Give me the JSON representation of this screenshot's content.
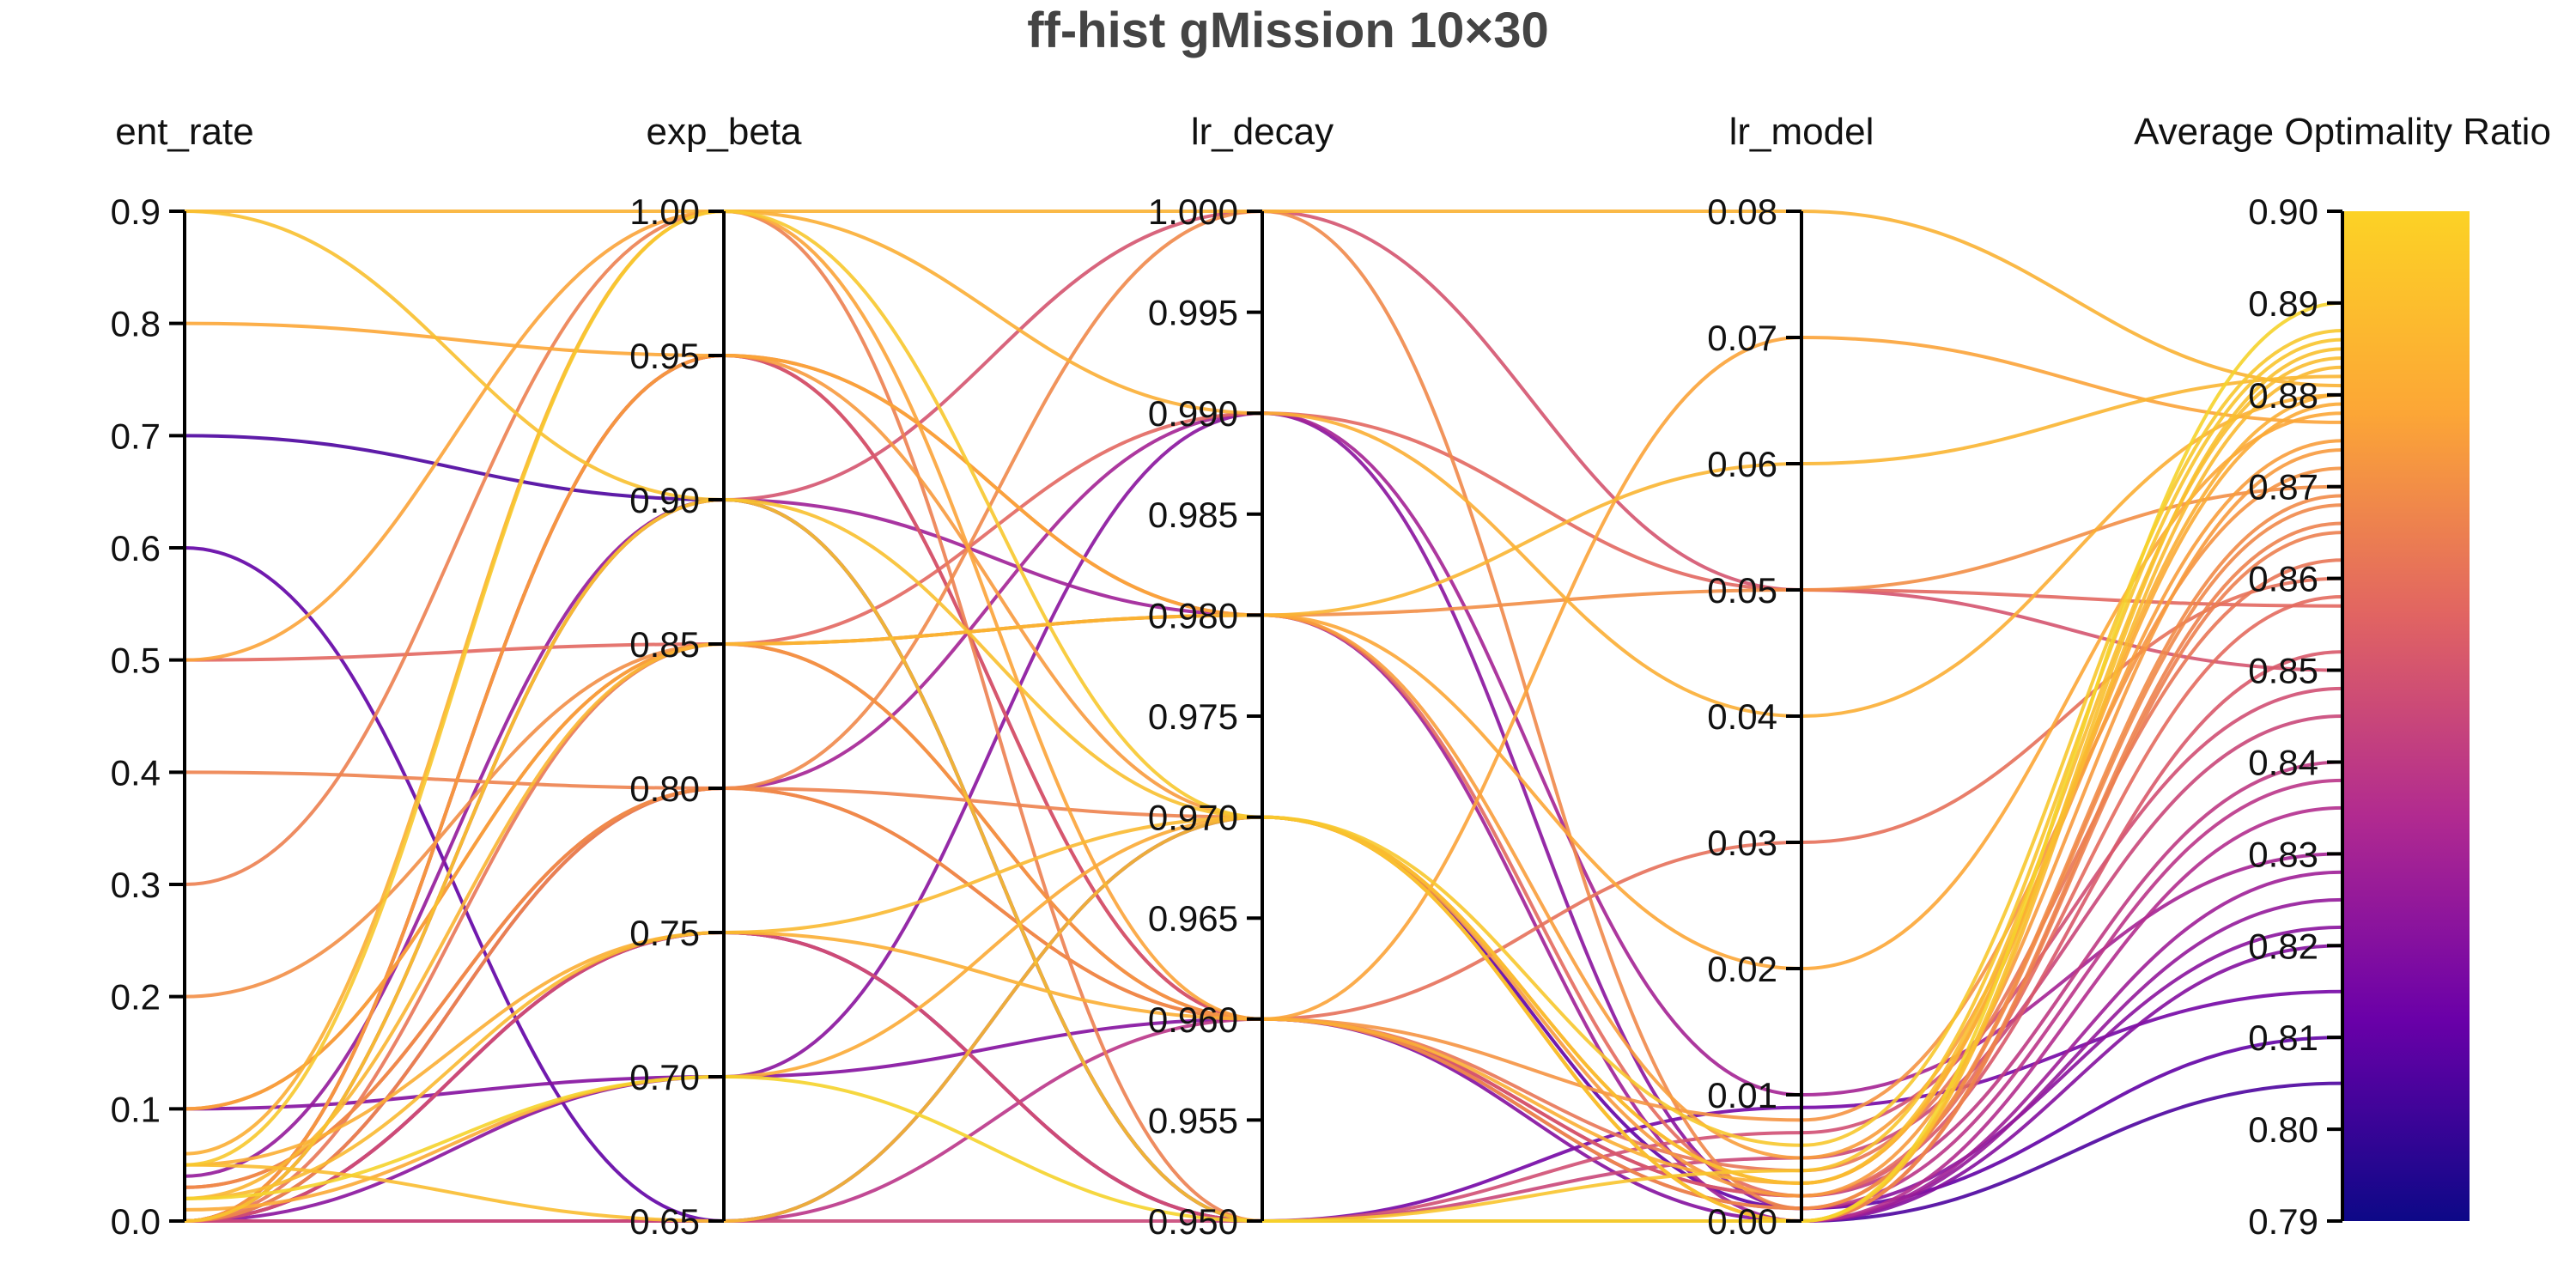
{
  "chart_data": {
    "type": "parallel_coordinates",
    "title": "ff-hist gMission 10×30",
    "axes": [
      {
        "name": "ent_rate",
        "range": [
          0.0,
          0.9
        ],
        "ticks": [
          "0.0",
          "0.1",
          "0.2",
          "0.3",
          "0.4",
          "0.5",
          "0.6",
          "0.7",
          "0.8",
          "0.9"
        ]
      },
      {
        "name": "exp_beta",
        "range": [
          0.65,
          1.0
        ],
        "ticks": [
          "0.65",
          "0.70",
          "0.75",
          "0.80",
          "0.85",
          "0.90",
          "0.95",
          "1.00"
        ]
      },
      {
        "name": "lr_decay",
        "range": [
          0.95,
          1.0
        ],
        "ticks": [
          "0.950",
          "0.955",
          "0.960",
          "0.965",
          "0.970",
          "0.975",
          "0.980",
          "0.985",
          "0.990",
          "0.995",
          "1.000"
        ]
      },
      {
        "name": "lr_model",
        "range": [
          0.0,
          0.08
        ],
        "ticks": [
          "0.00",
          "0.01",
          "0.02",
          "0.03",
          "0.04",
          "0.05",
          "0.06",
          "0.07",
          "0.08"
        ]
      },
      {
        "name": "Average Optimality Ratio",
        "range": [
          0.79,
          0.9
        ],
        "ticks": [
          "0.79",
          "0.80",
          "0.81",
          "0.82",
          "0.83",
          "0.84",
          "0.85",
          "0.86",
          "0.87",
          "0.88",
          "0.89",
          "0.90"
        ]
      }
    ],
    "colorscale": {
      "name": "plasma",
      "range": [
        0.79,
        0.9
      ],
      "stops": [
        "#0d0887",
        "#6a00a8",
        "#b12a90",
        "#e16462",
        "#fca636",
        "#f0f921"
      ]
    },
    "trial_values": {
      "ent_rate": [
        0.9,
        0.0,
        0.1,
        0.3,
        0.0,
        0.05,
        0.02,
        0.0,
        0.6,
        0.0,
        0.8,
        0.0,
        0.05,
        0.03,
        0.0,
        0.7,
        0.1,
        0.0,
        0.02,
        0.0,
        0.5,
        0.0,
        0.04,
        0.01,
        0.2,
        0.0,
        0.0,
        0.06,
        0.4,
        0.0,
        0.0,
        0.02,
        0.1,
        0.0,
        0.9,
        0.0,
        0.03,
        0.0,
        0.05,
        0.5
      ],
      "exp_beta": [
        0.9,
        0.95,
        0.85,
        1.0,
        0.8,
        0.75,
        0.7,
        0.9,
        0.65,
        0.85,
        0.95,
        0.75,
        1.0,
        0.8,
        0.7,
        0.9,
        0.85,
        0.95,
        0.75,
        0.65,
        1.0,
        0.8,
        0.9,
        0.7,
        0.85,
        0.95,
        0.75,
        1.0,
        0.8,
        0.65,
        0.9,
        0.85,
        0.7,
        0.95,
        1.0,
        0.75,
        0.8,
        0.9,
        0.65,
        0.85
      ],
      "lr_decay": [
        0.97,
        0.96,
        0.98,
        0.95,
        0.99,
        0.96,
        0.95,
        1.0,
        0.97,
        0.96,
        0.98,
        0.95,
        0.97,
        0.96,
        0.99,
        0.95,
        0.96,
        0.98,
        0.97,
        0.95,
        0.96,
        1.0,
        0.95,
        0.97,
        0.98,
        0.96,
        0.95,
        0.99,
        0.97,
        0.96,
        0.95,
        0.98,
        0.96,
        0.97,
        1.0,
        0.95,
        0.96,
        0.98,
        0.97,
        0.99
      ],
      "lr_model": [
        0.0,
        0.002,
        0.005,
        0.0,
        0.01,
        0.003,
        0.0,
        0.05,
        0.001,
        0.004,
        0.02,
        0.0,
        0.006,
        0.03,
        0.001,
        0.0,
        0.008,
        0.002,
        0.0,
        0.005,
        0.07,
        0.001,
        0.0,
        0.003,
        0.05,
        0.002,
        0.009,
        0.04,
        0.0,
        0.001,
        0.004,
        0.06,
        0.0,
        0.002,
        0.08,
        0.007,
        0.001,
        0.0,
        0.003,
        0.05
      ],
      "objective": [
        0.885,
        0.84,
        0.875,
        0.865,
        0.83,
        0.88,
        0.89,
        0.85,
        0.81,
        0.862,
        0.878,
        0.835,
        0.887,
        0.86,
        0.822,
        0.805,
        0.872,
        0.858,
        0.883,
        0.845,
        0.877,
        0.868,
        0.825,
        0.879,
        0.87,
        0.852,
        0.815,
        0.88,
        0.866,
        0.838,
        0.886,
        0.882,
        0.82,
        0.874,
        0.881,
        0.848,
        0.869,
        0.828,
        0.884,
        0.857
      ]
    }
  }
}
